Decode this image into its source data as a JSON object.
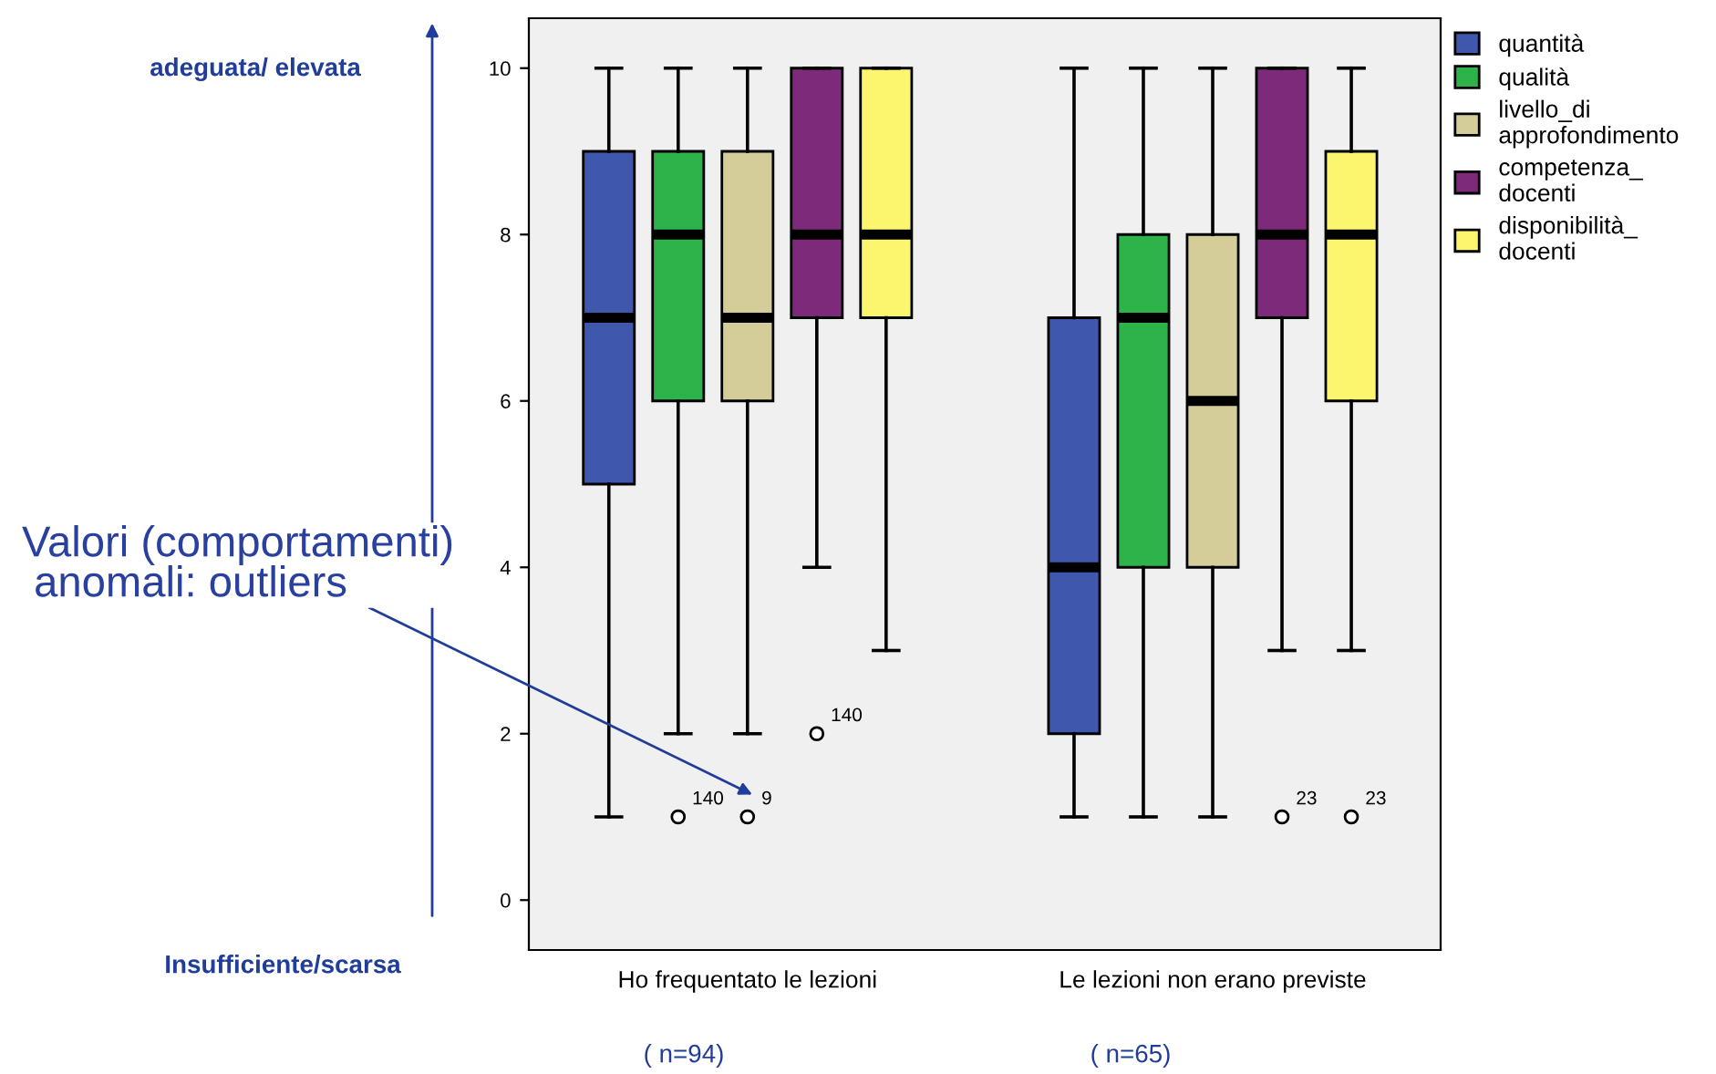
{
  "chart_data": {
    "type": "box",
    "categories": [
      "Ho frequentato le lezioni",
      "Le lezioni non erano previste"
    ],
    "series": [
      {
        "name": "quantità",
        "color": "#3f57ad",
        "boxes": [
          {
            "low": 1,
            "q1": 5,
            "median": 7,
            "q3": 9,
            "high": 10
          },
          {
            "low": 1,
            "q1": 2,
            "median": 4,
            "q3": 7,
            "high": 10
          }
        ]
      },
      {
        "name": "qualità",
        "color": "#2eb24a",
        "boxes": [
          {
            "low": 2,
            "q1": 6,
            "median": 8,
            "q3": 9,
            "high": 10,
            "outliers": [
              1
            ]
          },
          {
            "low": 1,
            "q1": 4,
            "median": 7,
            "q3": 8,
            "high": 10
          }
        ]
      },
      {
        "name": "livello_di\napprofondimento",
        "color": "#d4cc99",
        "boxes": [
          {
            "low": 2,
            "q1": 6,
            "median": 7,
            "q3": 9,
            "high": 10,
            "outliers": [
              1
            ]
          },
          {
            "low": 1,
            "q1": 4,
            "median": 6,
            "q3": 8,
            "high": 10
          }
        ]
      },
      {
        "name": "competenza_\ndocenti",
        "color": "#7d2a7a",
        "boxes": [
          {
            "low": 4,
            "q1": 7,
            "median": 8,
            "q3": 10,
            "high": 10,
            "outliers": [
              2
            ]
          },
          {
            "low": 3,
            "q1": 7,
            "median": 8,
            "q3": 10,
            "high": 10,
            "outliers": [
              1
            ]
          }
        ]
      },
      {
        "name": "disponibilità_\ndocenti",
        "color": "#fbf66e",
        "boxes": [
          {
            "low": 3,
            "q1": 7,
            "median": 8,
            "q3": 10,
            "high": 10
          },
          {
            "low": 3,
            "q1": 6,
            "median": 8,
            "q3": 9,
            "high": 10,
            "outliers": [
              1
            ]
          }
        ]
      }
    ],
    "ylim": [
      -0.6,
      10.6
    ],
    "yticks": [
      0,
      2,
      4,
      6,
      8,
      10
    ],
    "grid": false,
    "legend": "right",
    "annotations": [
      "140",
      "9",
      "140",
      "23",
      "23",
      "adeguata/ elevata",
      "Insufficiente/scarsa",
      "Valori (comportamenti)\n anomali: outliers",
      "( n=94)",
      "( n=65)"
    ]
  }
}
